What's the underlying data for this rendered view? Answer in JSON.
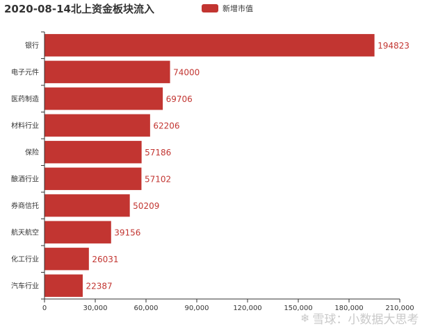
{
  "title": "2020-08-14北上资金板块流入",
  "legend": {
    "label": "新增市值"
  },
  "watermark": {
    "text": "雪球：小数据大思考",
    "icon": "snowball-logo-icon"
  },
  "colors": {
    "bar": "#c23531",
    "label": "#c23531",
    "axis": "#333333"
  },
  "chart_data": {
    "type": "bar",
    "orientation": "horizontal",
    "title": "2020-08-14北上资金板块流入",
    "xlabel": "",
    "ylabel": "",
    "xlim": [
      0,
      210000
    ],
    "xticks": [
      "0",
      "30,000",
      "60,000",
      "90,000",
      "120,000",
      "150,000",
      "180,000",
      "210,000"
    ],
    "xtick_values": [
      0,
      30000,
      60000,
      90000,
      120000,
      150000,
      180000,
      210000
    ],
    "grid": false,
    "legend_position": "top",
    "categories": [
      "银行",
      "电子元件",
      "医药制造",
      "材料行业",
      "保险",
      "酿酒行业",
      "券商信托",
      "航天航空",
      "化工行业",
      "汽车行业"
    ],
    "series": [
      {
        "name": "新增市值",
        "values": [
          194823,
          74000,
          69706,
          62206,
          57186,
          57102,
          50209,
          39156,
          26031,
          22387
        ]
      }
    ]
  }
}
